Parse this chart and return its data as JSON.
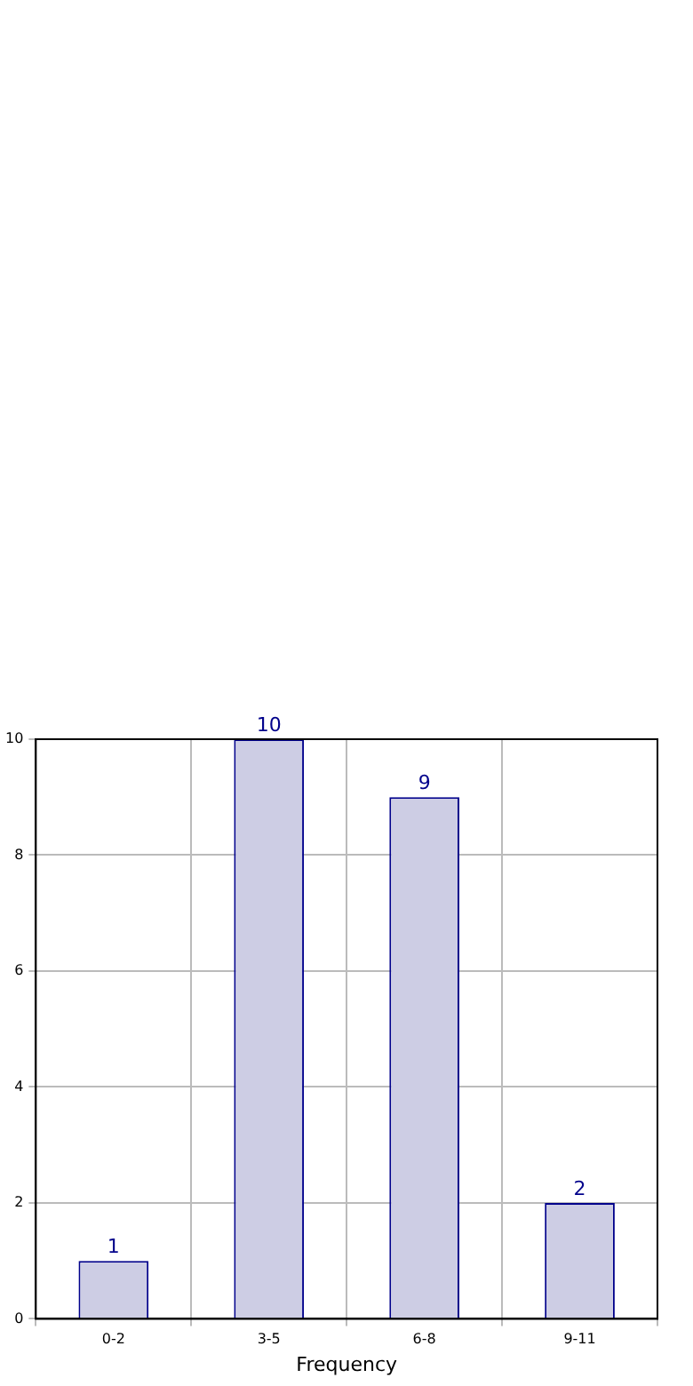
{
  "chart_data": {
    "type": "bar",
    "xlabel": "Frequency",
    "categories": [
      "0-2",
      "3-5",
      "6-8",
      "9-11"
    ],
    "values": [
      1,
      10,
      9,
      2
    ],
    "color": "#cdcde4",
    "ylim": [
      0,
      10
    ],
    "yticks": [
      0,
      2,
      4,
      6,
      8,
      10
    ],
    "grid": true,
    "data_labels": true,
    "legend": false
  }
}
